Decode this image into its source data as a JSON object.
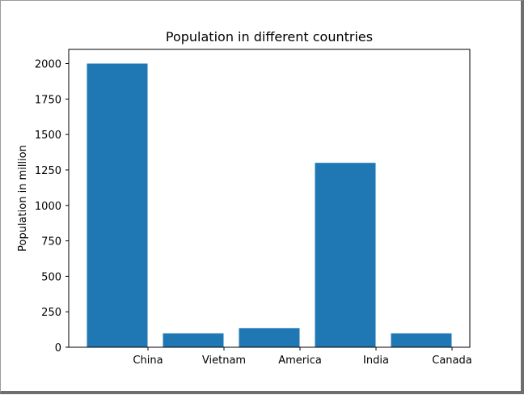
{
  "chart_data": {
    "type": "bar",
    "title": "Population in different countries",
    "xlabel": "",
    "ylabel": "Population in million",
    "categories": [
      "China",
      "Vietnam",
      "America",
      "India",
      "Canada"
    ],
    "values": [
      2000,
      98,
      135,
      1300,
      98
    ],
    "ylim": [
      0,
      2100
    ],
    "yticks": [
      0,
      250,
      500,
      750,
      1000,
      1250,
      1500,
      1750,
      2000
    ],
    "ytick_labels": [
      "0",
      "250",
      "500",
      "750",
      "1000",
      "1250",
      "1500",
      "1750",
      "2000"
    ],
    "bar_color": "#1f77b4",
    "grid": false
  }
}
